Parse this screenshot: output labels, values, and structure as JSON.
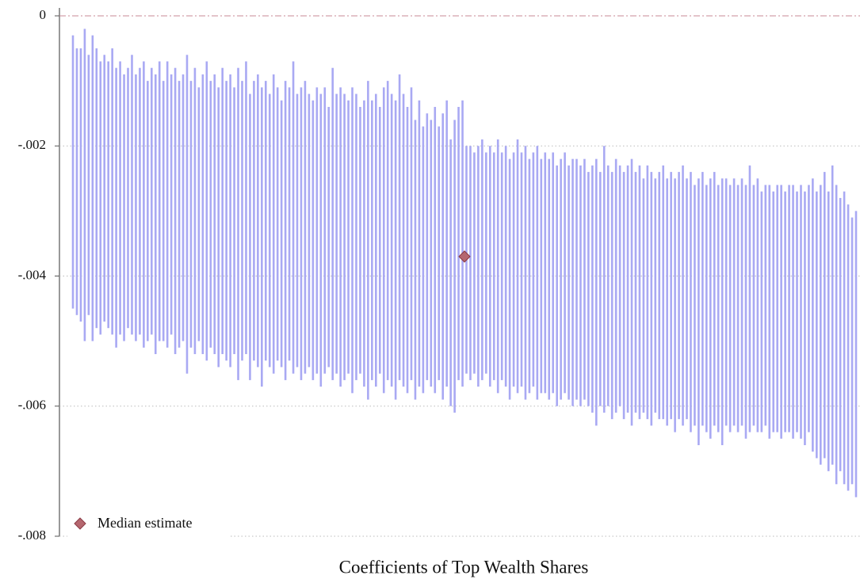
{
  "chart_data": {
    "type": "range",
    "title": "Coefficients of Top Wealth Shares",
    "ylim": [
      -0.008,
      0
    ],
    "yticks": [
      0,
      {
        "value": -0.002,
        "label": "-.002"
      },
      {
        "value": -0.004,
        "label": "-.004"
      },
      {
        "value": -0.006,
        "label": "-.006"
      },
      {
        "value": -0.008,
        "label": "-.008"
      }
    ],
    "grid": true,
    "zero_line_color": "#c98a96",
    "legend": "lower-left",
    "ranges": {
      "color": "#a9a9f3",
      "high": [
        -0.0003,
        -0.0005,
        -0.0005,
        -0.0002,
        -0.0006,
        -0.0003,
        -0.0005,
        -0.0007,
        -0.0006,
        -0.0007,
        -0.0005,
        -0.0008,
        -0.0007,
        -0.0009,
        -0.0008,
        -0.0006,
        -0.0009,
        -0.0008,
        -0.0007,
        -0.001,
        -0.0008,
        -0.0009,
        -0.0007,
        -0.001,
        -0.0007,
        -0.0009,
        -0.0008,
        -0.001,
        -0.0009,
        -0.0006,
        -0.001,
        -0.0008,
        -0.0011,
        -0.0009,
        -0.0007,
        -0.001,
        -0.0009,
        -0.0011,
        -0.0008,
        -0.001,
        -0.0009,
        -0.0011,
        -0.0008,
        -0.001,
        -0.0007,
        -0.0012,
        -0.001,
        -0.0009,
        -0.0011,
        -0.001,
        -0.0012,
        -0.0009,
        -0.0011,
        -0.0013,
        -0.001,
        -0.0011,
        -0.0007,
        -0.0012,
        -0.0011,
        -0.001,
        -0.0012,
        -0.0013,
        -0.0011,
        -0.0012,
        -0.0011,
        -0.0014,
        -0.0008,
        -0.0012,
        -0.0011,
        -0.0012,
        -0.0013,
        -0.0011,
        -0.0012,
        -0.0014,
        -0.0013,
        -0.001,
        -0.0013,
        -0.0012,
        -0.0014,
        -0.0011,
        -0.001,
        -0.0012,
        -0.0013,
        -0.0009,
        -0.0012,
        -0.0014,
        -0.0011,
        -0.0016,
        -0.0013,
        -0.0017,
        -0.0015,
        -0.0016,
        -0.0014,
        -0.0017,
        -0.0015,
        -0.0013,
        -0.0019,
        -0.0016,
        -0.0014,
        -0.0013,
        -0.002,
        -0.002,
        -0.0021,
        -0.002,
        -0.0019,
        -0.0021,
        -0.002,
        -0.0021,
        -0.0019,
        -0.0021,
        -0.002,
        -0.0022,
        -0.0021,
        -0.0019,
        -0.0021,
        -0.002,
        -0.0022,
        -0.0021,
        -0.002,
        -0.0022,
        -0.0021,
        -0.0022,
        -0.0021,
        -0.0023,
        -0.0022,
        -0.0021,
        -0.0023,
        -0.0022,
        -0.0022,
        -0.0023,
        -0.0022,
        -0.0024,
        -0.0023,
        -0.0022,
        -0.0024,
        -0.002,
        -0.0023,
        -0.0024,
        -0.0022,
        -0.0023,
        -0.0024,
        -0.0023,
        -0.0022,
        -0.0024,
        -0.0023,
        -0.0025,
        -0.0023,
        -0.0024,
        -0.0025,
        -0.0024,
        -0.0023,
        -0.0025,
        -0.0024,
        -0.0025,
        -0.0024,
        -0.0023,
        -0.0025,
        -0.0024,
        -0.0026,
        -0.0025,
        -0.0024,
        -0.0026,
        -0.0025,
        -0.0024,
        -0.0026,
        -0.0025,
        -0.0025,
        -0.0026,
        -0.0025,
        -0.0026,
        -0.0025,
        -0.0026,
        -0.0023,
        -0.0026,
        -0.0025,
        -0.0027,
        -0.0026,
        -0.0026,
        -0.0027,
        -0.0026,
        -0.0026,
        -0.0027,
        -0.0026,
        -0.0026,
        -0.0027,
        -0.0026,
        -0.0027,
        -0.0026,
        -0.0025,
        -0.0027,
        -0.0026,
        -0.0024,
        -0.0027,
        -0.0023,
        -0.0026,
        -0.0028,
        -0.0027,
        -0.0029,
        -0.0031,
        -0.003
      ],
      "low": [
        -0.0045,
        -0.0046,
        -0.0047,
        -0.005,
        -0.0046,
        -0.005,
        -0.0048,
        -0.0049,
        -0.0047,
        -0.0048,
        -0.0049,
        -0.0051,
        -0.0049,
        -0.005,
        -0.0048,
        -0.0049,
        -0.005,
        -0.0049,
        -0.0051,
        -0.005,
        -0.0049,
        -0.0052,
        -0.005,
        -0.005,
        -0.0051,
        -0.0049,
        -0.0052,
        -0.0051,
        -0.005,
        -0.0055,
        -0.0051,
        -0.0052,
        -0.005,
        -0.0052,
        -0.0053,
        -0.0051,
        -0.0052,
        -0.0054,
        -0.0052,
        -0.0053,
        -0.0054,
        -0.0052,
        -0.0056,
        -0.0053,
        -0.0052,
        -0.0056,
        -0.0053,
        -0.0054,
        -0.0057,
        -0.0053,
        -0.0054,
        -0.0055,
        -0.0053,
        -0.0054,
        -0.0056,
        -0.0053,
        -0.0055,
        -0.0054,
        -0.0056,
        -0.0055,
        -0.0054,
        -0.0056,
        -0.0055,
        -0.0057,
        -0.0055,
        -0.0054,
        -0.0056,
        -0.0055,
        -0.0057,
        -0.0056,
        -0.0055,
        -0.0058,
        -0.0056,
        -0.0055,
        -0.0057,
        -0.0059,
        -0.0056,
        -0.0057,
        -0.0055,
        -0.0058,
        -0.0056,
        -0.0057,
        -0.0059,
        -0.0056,
        -0.0057,
        -0.0058,
        -0.0056,
        -0.0059,
        -0.0057,
        -0.0058,
        -0.0056,
        -0.0057,
        -0.0058,
        -0.0056,
        -0.0059,
        -0.0057,
        -0.006,
        -0.0061,
        -0.0056,
        -0.0057,
        -0.0055,
        -0.0056,
        -0.0055,
        -0.0057,
        -0.0056,
        -0.0055,
        -0.0057,
        -0.0056,
        -0.0058,
        -0.0056,
        -0.0057,
        -0.0059,
        -0.0057,
        -0.0058,
        -0.0057,
        -0.0059,
        -0.0058,
        -0.0057,
        -0.0059,
        -0.0058,
        -0.0058,
        -0.0059,
        -0.0058,
        -0.006,
        -0.0059,
        -0.0058,
        -0.0059,
        -0.006,
        -0.0059,
        -0.006,
        -0.0059,
        -0.006,
        -0.0061,
        -0.0063,
        -0.006,
        -0.0061,
        -0.006,
        -0.0062,
        -0.0061,
        -0.006,
        -0.0062,
        -0.0061,
        -0.0063,
        -0.0061,
        -0.0062,
        -0.0061,
        -0.0062,
        -0.0063,
        -0.0061,
        -0.0062,
        -0.0062,
        -0.0063,
        -0.0062,
        -0.0064,
        -0.0062,
        -0.0063,
        -0.0062,
        -0.0064,
        -0.0063,
        -0.0066,
        -0.0063,
        -0.0064,
        -0.0065,
        -0.0063,
        -0.0064,
        -0.0066,
        -0.0063,
        -0.0064,
        -0.0063,
        -0.0064,
        -0.0063,
        -0.0065,
        -0.0064,
        -0.0063,
        -0.0064,
        -0.0064,
        -0.0063,
        -0.0065,
        -0.0064,
        -0.0064,
        -0.0065,
        -0.0064,
        -0.0064,
        -0.0065,
        -0.0064,
        -0.0065,
        -0.0066,
        -0.0064,
        -0.0067,
        -0.0068,
        -0.0069,
        -0.0068,
        -0.007,
        -0.0069,
        -0.0072,
        -0.007,
        -0.0072,
        -0.0073,
        -0.0072,
        -0.0074
      ]
    },
    "median": {
      "name": "Median estimate",
      "value": -0.0037,
      "color": "#b5676f"
    }
  }
}
